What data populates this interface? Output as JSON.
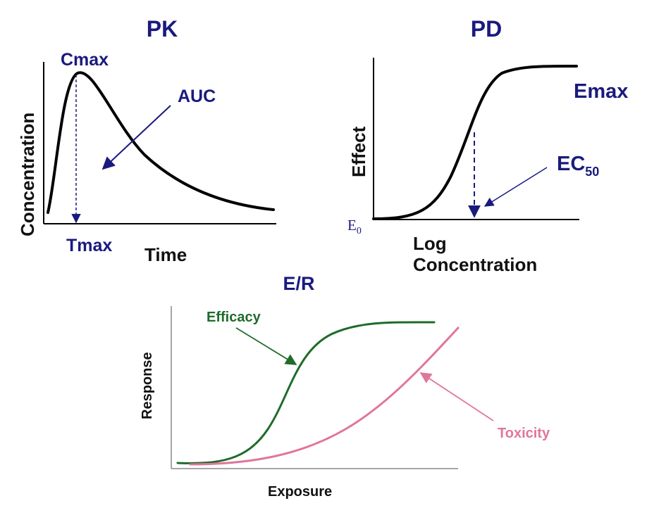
{
  "pk": {
    "title": "PK",
    "ylabel": "Concentration",
    "xlabel": "Time",
    "cmax": "Cmax",
    "auc": "AUC",
    "tmax": "Tmax"
  },
  "pd": {
    "title": "PD",
    "ylabel": "Effect",
    "xlabel_line1": "Log",
    "xlabel_line2": "Concentration",
    "emax": "Emax",
    "ec50_main": "EC",
    "ec50_sub": "50",
    "e0_main": "E",
    "e0_sub": "0"
  },
  "er": {
    "title": "E/R",
    "ylabel": "Response",
    "xlabel": "Exposure",
    "efficacy": "Efficacy",
    "toxicity": "Toxicity"
  },
  "colors": {
    "title": "#1a1a7e",
    "curve": "#000000",
    "efficacy": "#1f6b2a",
    "toxicity": "#e0769a",
    "arrow": "#1a1a7e"
  }
}
